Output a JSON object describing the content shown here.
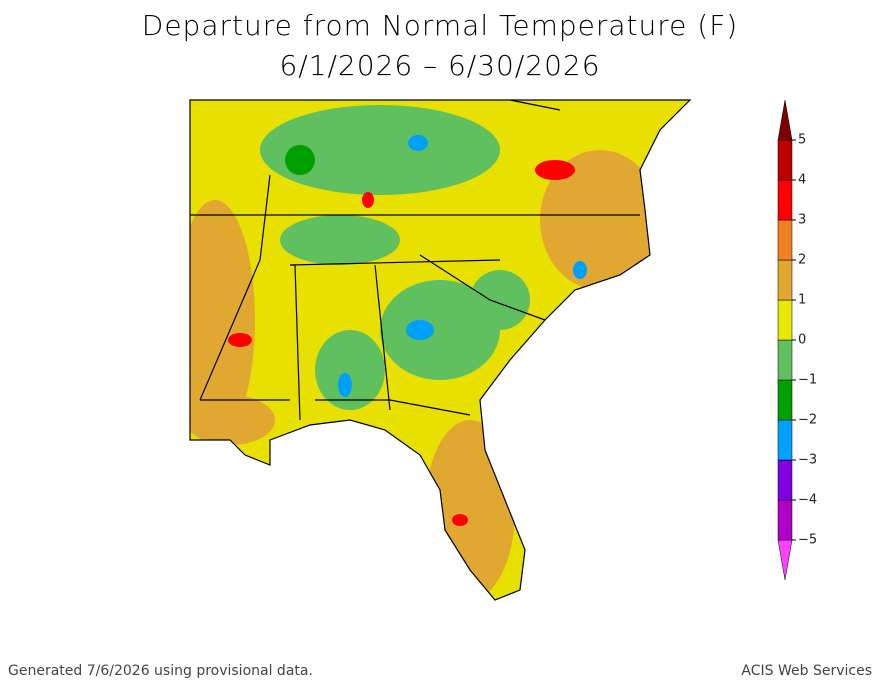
{
  "header": {
    "title": "Departure from Normal Temperature (F)",
    "subtitle": "6/1/2026 – 6/30/2026"
  },
  "colorbar": {
    "ticks": [
      {
        "value": -5,
        "label": "−5"
      },
      {
        "value": -4,
        "label": "−4"
      },
      {
        "value": -3,
        "label": "−3"
      },
      {
        "value": -2,
        "label": "−2"
      },
      {
        "value": -1,
        "label": "−1"
      },
      0,
      1,
      2,
      3,
      4,
      5
    ],
    "colors": [
      "#ff40ff",
      "#b000c8",
      "#8000e0",
      "#00a0ff",
      "#00a000",
      "#60c060",
      "#e8e800",
      "#e0a830",
      "#f08020",
      "#ff0000",
      "#c00000",
      "#800000"
    ]
  },
  "footer": {
    "left": "Generated 7/6/2026 using provisional data.",
    "right": "ACIS Web Services"
  }
}
